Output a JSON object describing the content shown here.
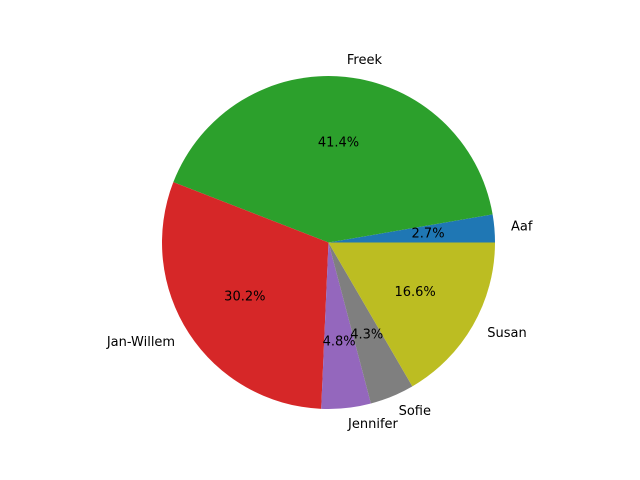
{
  "chart_data": {
    "type": "pie",
    "slices": [
      {
        "label": "Aaf",
        "value": 2.7,
        "pct_label": "2.7%",
        "color": "#1f77b4"
      },
      {
        "label": "Freek",
        "value": 41.4,
        "pct_label": "41.4%",
        "color": "#2ca02c"
      },
      {
        "label": "Jan-Willem",
        "value": 30.2,
        "pct_label": "30.2%",
        "color": "#d62728"
      },
      {
        "label": "Jennifer",
        "value": 4.8,
        "pct_label": "4.8%",
        "color": "#9467bd"
      },
      {
        "label": "Sofie",
        "value": 4.3,
        "pct_label": "4.3%",
        "color": "#7f7f7f"
      },
      {
        "label": "Susan",
        "value": 16.6,
        "pct_label": "16.6%",
        "color": "#bcbd22"
      }
    ],
    "start_angle": 0,
    "direction": "counterclockwise"
  }
}
